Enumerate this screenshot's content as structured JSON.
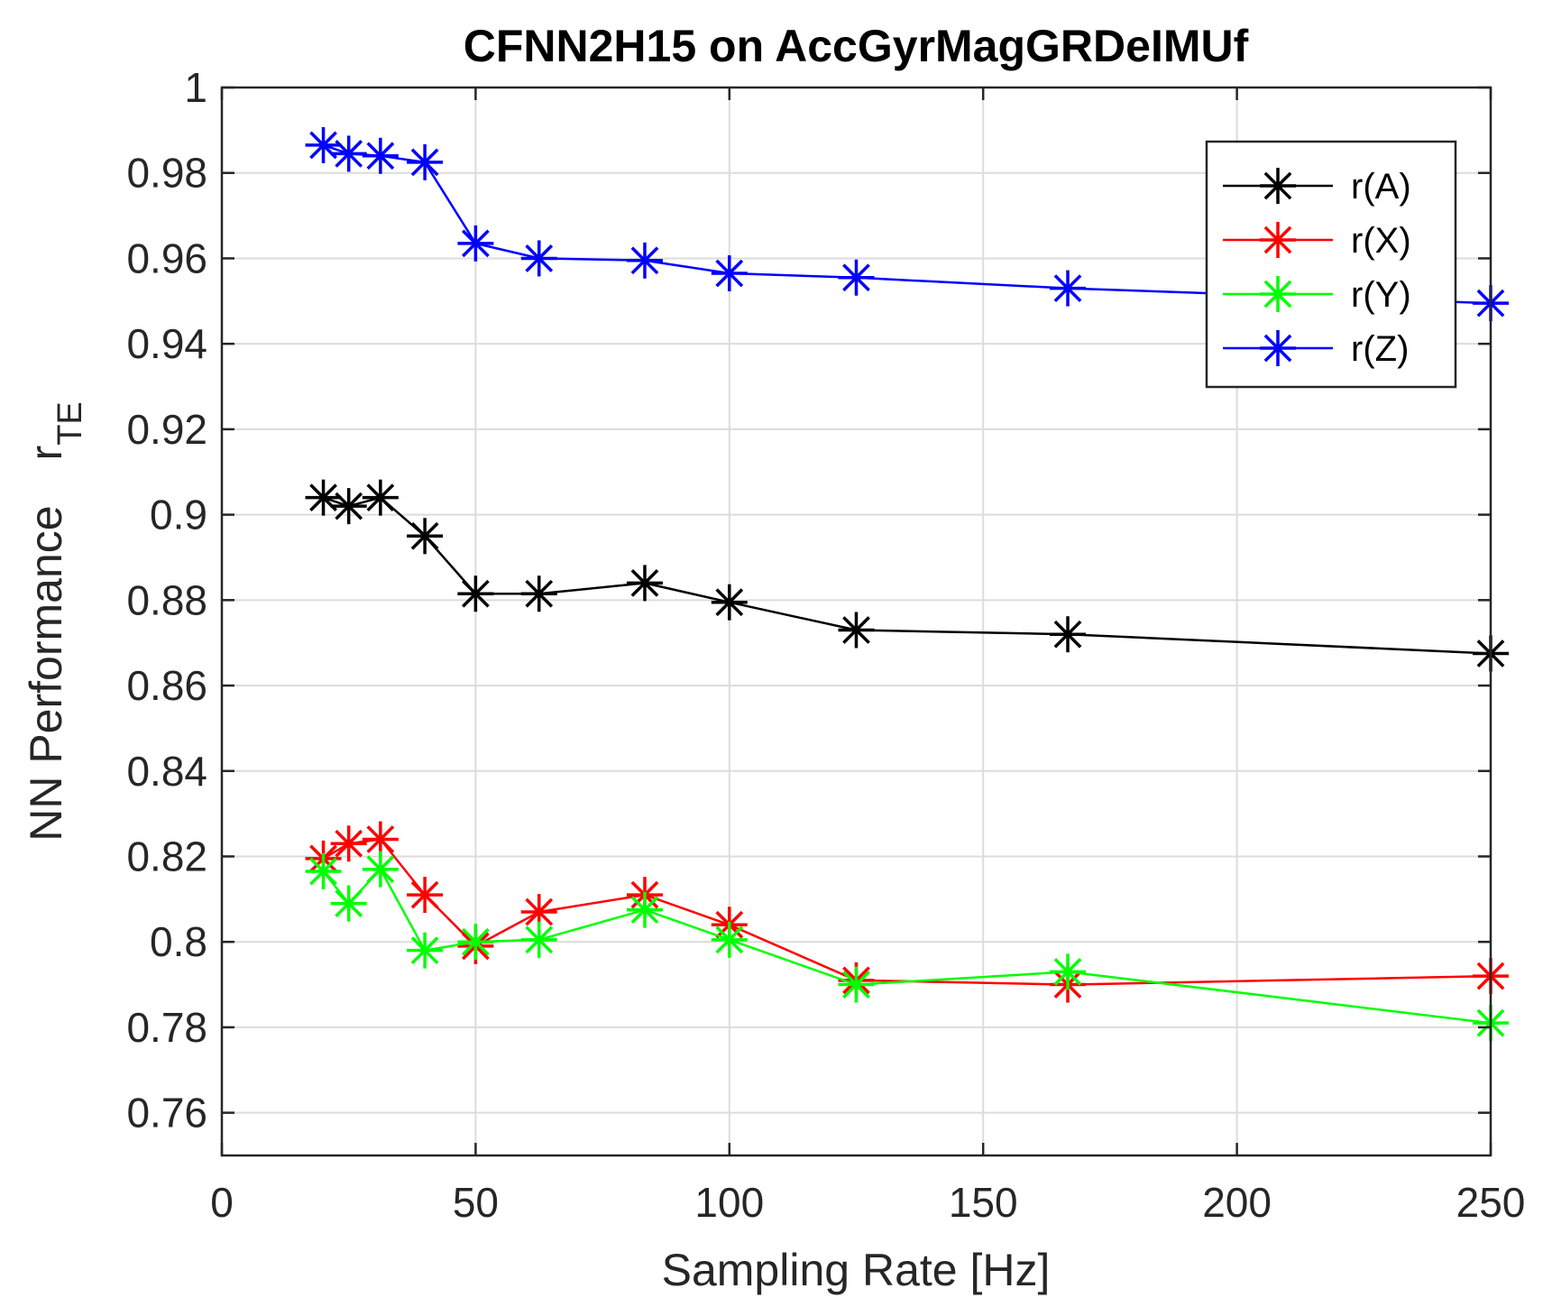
{
  "chart_data": {
    "type": "line",
    "title": "CFNN2H15 on AccGyrMagGRDeIMUf",
    "xlabel": "Sampling Rate [Hz]",
    "ylabel_main": "NN Performance",
    "ylabel_symbol": "r",
    "ylabel_subscript": "TE",
    "xlim": [
      0,
      250
    ],
    "ylim": [
      0.75,
      1
    ],
    "xticks": [
      0,
      50,
      100,
      150,
      200,
      250
    ],
    "xtick_labels": [
      "0",
      "50",
      "100",
      "150",
      "200",
      "250"
    ],
    "yticks": [
      0.76,
      0.78,
      0.8,
      0.82,
      0.84,
      0.86,
      0.88,
      0.9,
      0.92,
      0.94,
      0.96,
      0.98,
      1
    ],
    "ytick_labels": [
      "0.76",
      "0.78",
      "0.8",
      "0.82",
      "0.84",
      "0.86",
      "0.88",
      "0.9",
      "0.92",
      "0.94",
      "0.96",
      "0.98",
      "1"
    ],
    "grid": true,
    "legend_position": "top-right",
    "x": [
      20,
      25,
      31.25,
      40,
      50,
      62.5,
      83.33,
      100,
      125,
      166.67,
      250
    ],
    "series": [
      {
        "name": "r(A)",
        "color": "#000000",
        "marker": "asterisk",
        "values": [
          0.904,
          0.902,
          0.904,
          0.895,
          0.8815,
          0.8815,
          0.884,
          0.8795,
          0.873,
          0.872,
          0.8675
        ]
      },
      {
        "name": "r(X)",
        "color": "#ff0000",
        "marker": "asterisk",
        "values": [
          0.8195,
          0.823,
          0.824,
          0.811,
          0.799,
          0.807,
          0.811,
          0.804,
          0.791,
          0.79,
          0.792
        ]
      },
      {
        "name": "r(Y)",
        "color": "#00ff00",
        "marker": "asterisk",
        "values": [
          0.8165,
          0.809,
          0.817,
          0.798,
          0.8,
          0.8005,
          0.8075,
          0.8005,
          0.79,
          0.793,
          0.781
        ]
      },
      {
        "name": "r(Z)",
        "color": "#0000ff",
        "marker": "asterisk",
        "values": [
          0.9865,
          0.9845,
          0.984,
          0.9825,
          0.9635,
          0.96,
          0.9595,
          0.9565,
          0.9555,
          0.953,
          0.9495
        ]
      }
    ]
  }
}
